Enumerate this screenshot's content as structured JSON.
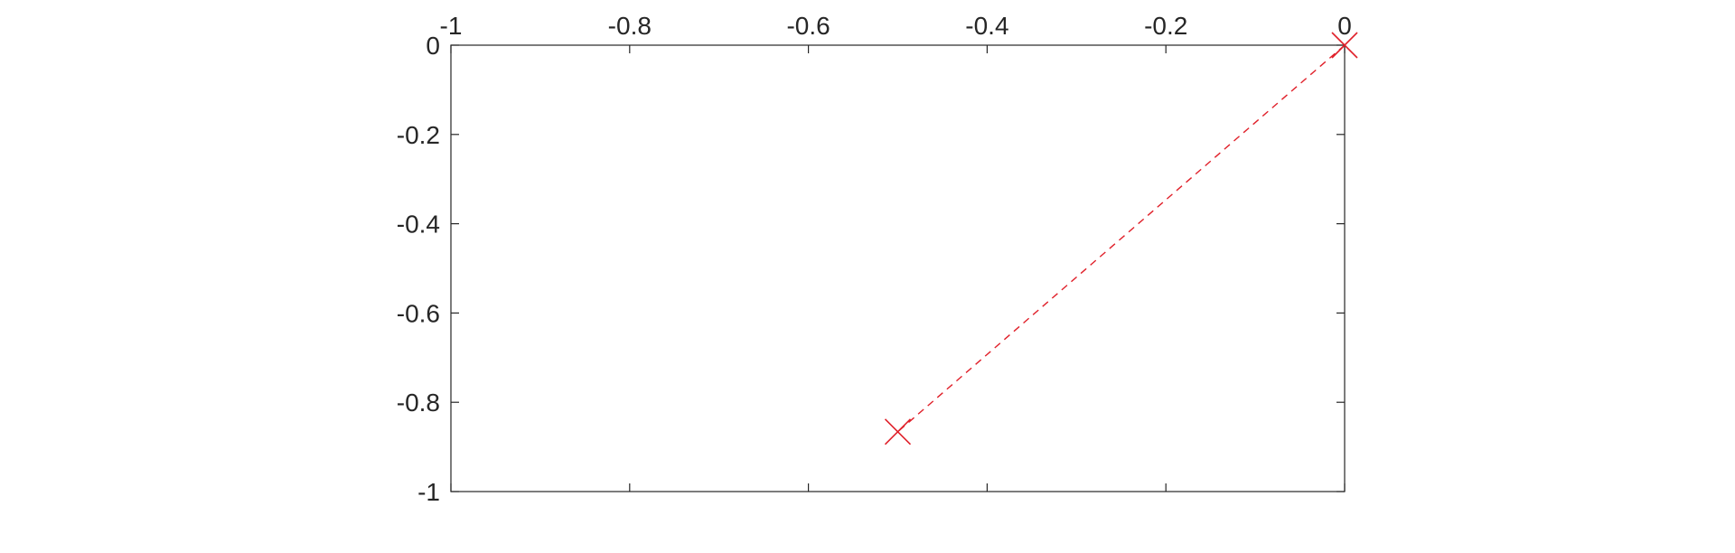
{
  "chart_data": {
    "type": "line",
    "title": "",
    "xlabel": "",
    "ylabel": "",
    "xlim": [
      -1,
      0
    ],
    "ylim": [
      -1,
      0
    ],
    "x_axis_location": "top",
    "y_direction": "reversed",
    "grid": false,
    "x_ticks": [
      -1,
      -0.8,
      -0.6,
      -0.4,
      -0.2,
      0
    ],
    "y_ticks": [
      0,
      -0.2,
      -0.4,
      -0.6,
      -0.8,
      -1
    ],
    "x_tick_labels": [
      "-1",
      "-0.8",
      "-0.6",
      "-0.4",
      "-0.2",
      "0"
    ],
    "y_tick_labels": [
      "0",
      "-0.2",
      "-0.4",
      "-0.6",
      "-0.8",
      "-1"
    ],
    "series": [
      {
        "x": [
          0,
          -0.5
        ],
        "y": [
          0,
          -0.866
        ],
        "color": "#e0202a",
        "line_style": "dashed",
        "marker": "x"
      }
    ]
  }
}
